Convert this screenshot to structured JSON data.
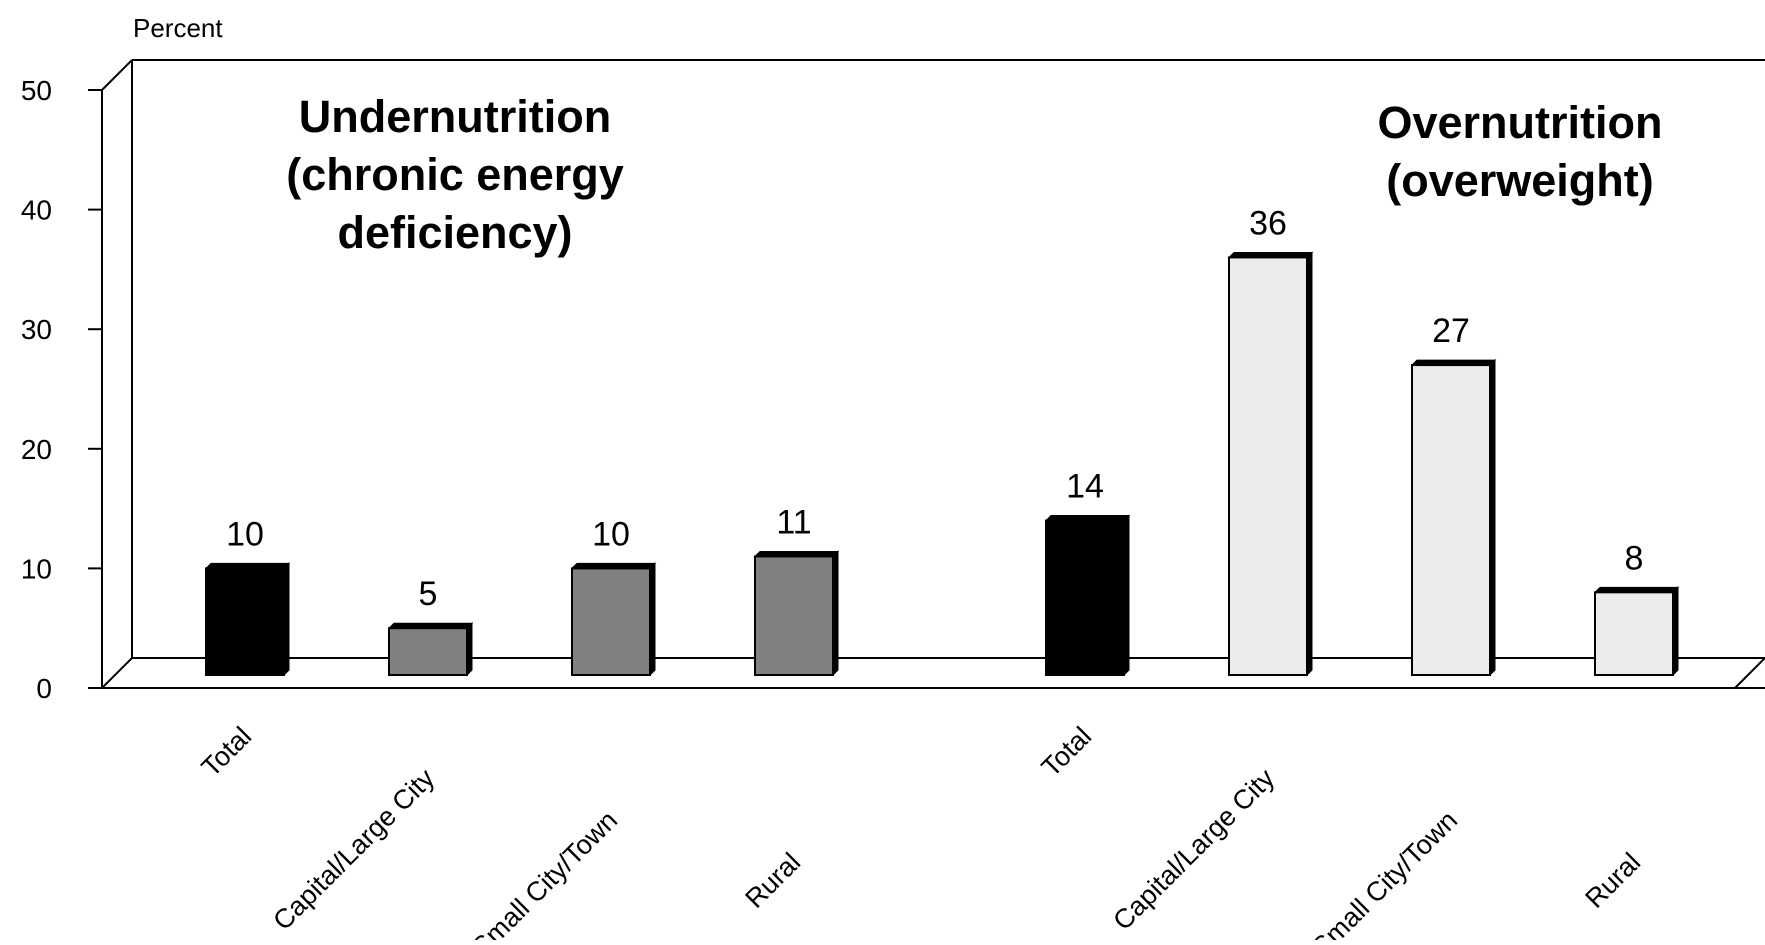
{
  "chart_data": {
    "type": "bar",
    "ylabel": "Percent",
    "ylim": [
      0,
      50
    ],
    "yticks": [
      "0",
      "10",
      "20",
      "30",
      "40",
      "50"
    ],
    "groups": [
      {
        "title_lines": [
          "Undernutrition",
          "(chronic energy",
          "deficiency)"
        ],
        "categories": [
          "Total",
          "Capital/Large City",
          "Small City/Town",
          "Rural"
        ],
        "values": [
          10,
          5,
          10,
          11
        ],
        "colors": [
          "#000000",
          "#808080",
          "#808080",
          "#808080"
        ]
      },
      {
        "title_lines": [
          "Overnutrition",
          "(overweight)"
        ],
        "categories": [
          "Total",
          "Capital/Large City",
          "Small City/Town",
          "Rural"
        ],
        "values": [
          14,
          36,
          27,
          8
        ],
        "colors": [
          "#000000",
          "#ececec",
          "#ececec",
          "#ececec"
        ]
      }
    ],
    "grid": false,
    "legend": "none"
  }
}
